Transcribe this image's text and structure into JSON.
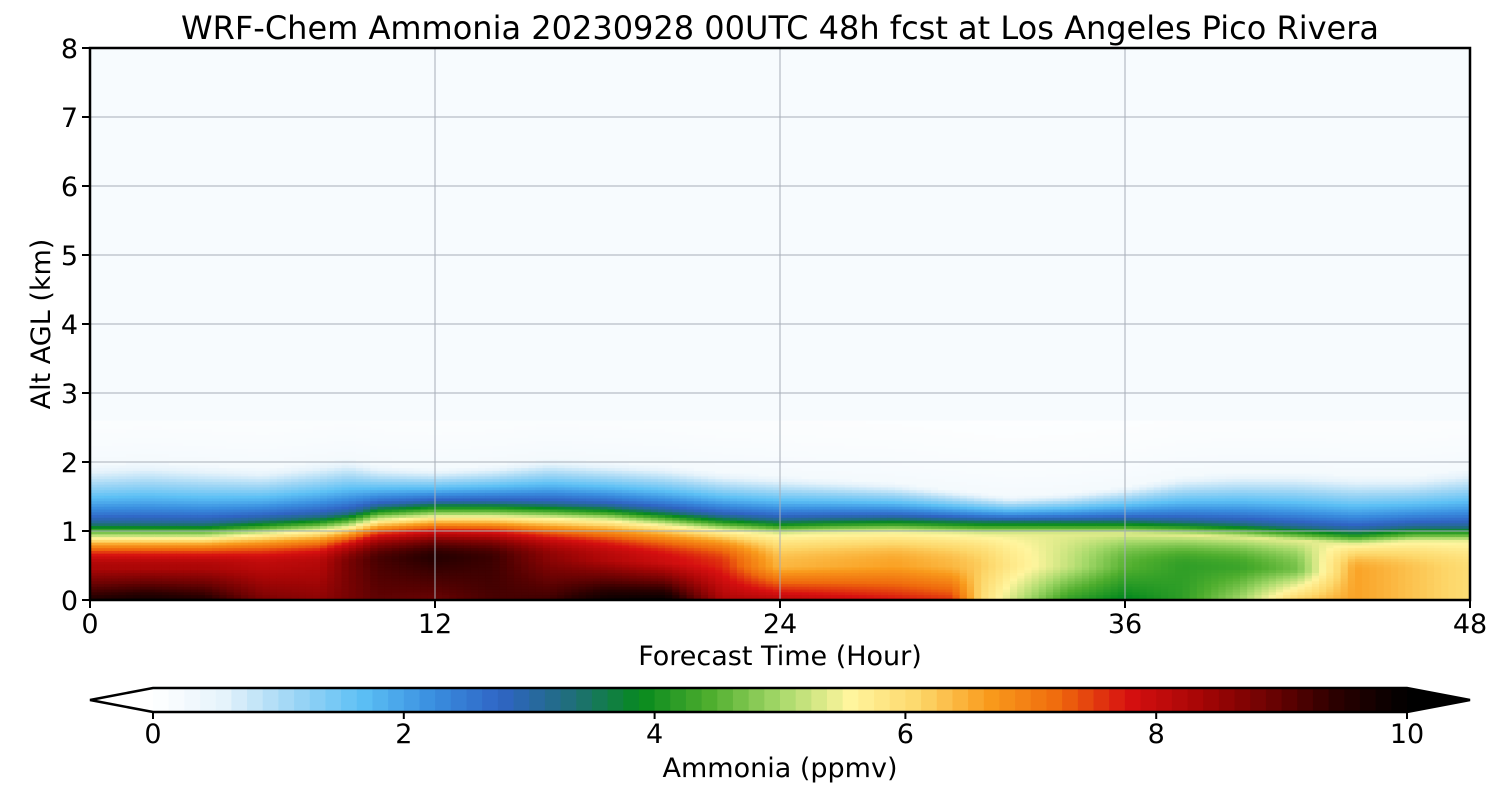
{
  "chart_data": {
    "type": "heatmap",
    "title": "WRF-Chem Ammonia  20230928 00UTC 48h fcst at Los Angeles Pico Rivera",
    "xlabel": "Forecast Time (Hour)",
    "ylabel": "Alt AGL (km)",
    "xlim": [
      0,
      48
    ],
    "ylim": [
      0,
      8
    ],
    "xticks": [
      "0",
      "12",
      "24",
      "36",
      "48"
    ],
    "yticks": [
      "0",
      "1",
      "2",
      "3",
      "4",
      "5",
      "6",
      "7",
      "8"
    ],
    "grid": true,
    "colorbar": {
      "label": "Ammonia  (ppmv)",
      "range": [
        0,
        10
      ],
      "ticks": [
        "0",
        "2",
        "4",
        "6",
        "8",
        "10"
      ],
      "extend": "both",
      "colors": [
        "#ffffff",
        "#e6f3fb",
        "#9fd6f5",
        "#5cc0f5",
        "#3a8fe0",
        "#2f64c4",
        "#1f6e7a",
        "#078a1e",
        "#4fae2e",
        "#a6d96a",
        "#fff59e",
        "#fdd76a",
        "#f99b1c",
        "#ef6a0d",
        "#d71010",
        "#a80606",
        "#6e0202",
        "#2a0000",
        "#000000"
      ]
    },
    "profiles": {
      "times": [
        0,
        2,
        4,
        6,
        8,
        9,
        10,
        12,
        14,
        16,
        18,
        20,
        22,
        24,
        26,
        28,
        30,
        31,
        32,
        34,
        36,
        38,
        40,
        42,
        44,
        46,
        48
      ],
      "boundary_layer_top_km": [
        1.1,
        1.1,
        1.1,
        1.15,
        1.2,
        1.25,
        1.35,
        1.4,
        1.4,
        1.38,
        1.35,
        1.28,
        1.2,
        1.15,
        1.17,
        1.18,
        1.16,
        1.15,
        1.15,
        1.15,
        1.15,
        1.13,
        1.1,
        1.05,
        1.0,
        1.05,
        1.05
      ],
      "upper_tail_km": [
        1.95,
        2.0,
        1.95,
        1.9,
        2.0,
        2.05,
        1.95,
        1.9,
        1.95,
        2.05,
        2.0,
        1.95,
        1.85,
        1.8,
        1.75,
        1.7,
        1.6,
        1.55,
        1.5,
        1.55,
        1.65,
        1.8,
        1.85,
        1.85,
        1.8,
        1.8,
        1.9
      ],
      "surface_ppmv": [
        9.6,
        9.8,
        9.6,
        8.8,
        8.6,
        8.8,
        9.0,
        8.9,
        9.2,
        9.3,
        9.9,
        10.0,
        8.3,
        8.2,
        8.0,
        7.8,
        7.6,
        6.0,
        5.3,
        4.2,
        3.8,
        4.2,
        5.0,
        6.2,
        6.6,
        6.3,
        6.0
      ],
      "mid_ppmv": [
        8.3,
        8.3,
        8.3,
        8.1,
        8.2,
        8.8,
        9.2,
        9.5,
        9.3,
        8.6,
        8.2,
        7.9,
        7.6,
        6.4,
        6.5,
        6.6,
        6.4,
        6.2,
        5.8,
        5.2,
        4.5,
        4.2,
        4.3,
        4.7,
        6.6,
        6.3,
        6.0
      ]
    }
  }
}
